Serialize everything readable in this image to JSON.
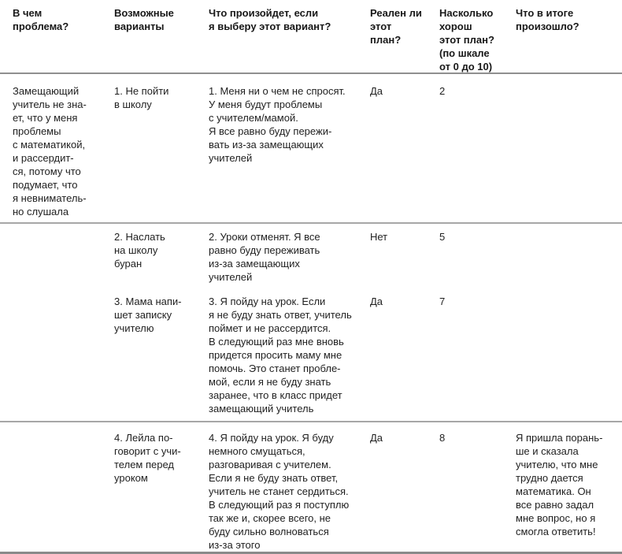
{
  "colors": {
    "text": "#1f1f1f",
    "rule_gray": "#a7a7a7",
    "header_rule_gray": "#8f8f8f",
    "background": "#ffffff"
  },
  "header": {
    "problem": "В чем\nпроблема?",
    "options": "Возможные\nварианты",
    "outcome": "Что произойдет, если\nя выберу этот вариант?",
    "realistic": "Реален ли\nэтот\nплан?",
    "score": "Насколько\nхорош\nэтот план?\n(по шкале\nот 0 до 10)",
    "result": "Что в итоге\nпроизошло?"
  },
  "rows": [
    {
      "problem": "Замещающий\nучитель не зна-\nет, что у меня\nпроблемы\nс математикой,\nи рассердит-\nся, потому что\nподумает, что\nя невниматель-\nно слушала",
      "option": "1. Не пойти\nв школу",
      "outcome": "1. Меня ни о чем не спросят.\nУ меня будут проблемы\nс учителем/мамой.\nЯ все равно буду пережи-\nвать из-за замещающих\nучителей",
      "realistic": "Да",
      "score": "2",
      "result": ""
    },
    {
      "problem": "",
      "option": "2. Наслать\nна школу\nбуран",
      "outcome": "2. Уроки отменят. Я все\nравно буду переживать\nиз-за замещающих\nучителей",
      "realistic": "Нет",
      "score": "5",
      "result": ""
    },
    {
      "problem": "",
      "option": "3. Мама напи-\nшет записку\nучителю",
      "outcome": "3. Я пойду на урок. Если\nя не буду знать ответ, учитель\nпоймет и не рассердится.\nВ следующий раз мне вновь\nпридется просить маму мне\nпомочь. Это станет пробле-\nмой, если я не буду знать\nзаранее, что в класс придет\nзамещающий учитель",
      "realistic": "Да",
      "score": "7",
      "result": ""
    },
    {
      "problem": "",
      "option": "4. Лейла по-\nговорит с учи-\nтелем перед\nуроком",
      "outcome": "4. Я пойду на урок. Я буду\nнемного смущаться,\nразговаривая с учителем.\nЕсли я не буду знать ответ,\nучитель не станет сердиться.\nВ следующий раз я поступлю\nтак же и, скорее всего, не\nбуду сильно волноваться\nиз-за этого",
      "realistic": "Да",
      "score": "8",
      "result": "Я пришла порань-\nше и сказала\nучителю, что мне\nтрудно дается\nматематика. Он\nвсе равно задал\nмне вопрос, но я\nсмогла ответить!"
    }
  ]
}
